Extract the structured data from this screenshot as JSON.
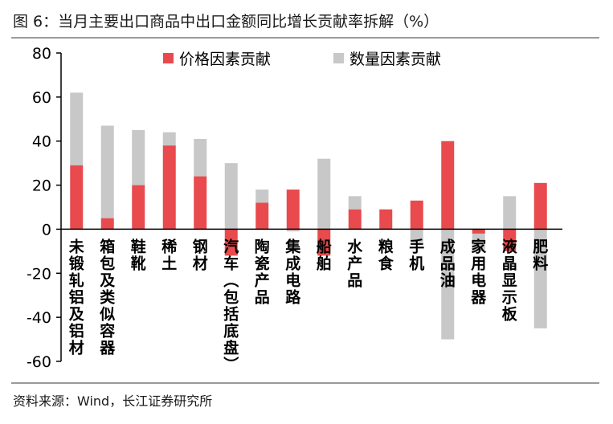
{
  "figure_title": "图 6：当月主要出口商品中出口金额同比增长贡献率拆解（%）",
  "source_note": "资料来源：Wind，长江证券研究所",
  "colors": {
    "price": "#e84a4d",
    "volume": "#c8c8c8"
  },
  "chart_data": {
    "type": "bar",
    "title": "",
    "xlabel": "",
    "ylabel": "",
    "ylim": [
      -60,
      80
    ],
    "yticks": [
      80,
      60,
      40,
      20,
      0,
      -20,
      -40,
      -60
    ],
    "grid": false,
    "legend_placement": "top",
    "categories": [
      "未锻轧铝及铝材",
      "箱包及类似容器",
      "鞋靴",
      "稀土",
      "钢材",
      "汽车（包括底盘）",
      "陶瓷产品",
      "集成电路",
      "船舶",
      "水产品",
      "粮食",
      "手机",
      "成品油",
      "家用电器",
      "液晶显示板",
      "肥料"
    ],
    "series": [
      {
        "name": "价格因素贡献",
        "values": [
          29,
          5,
          20,
          38,
          24,
          -12,
          12,
          18,
          -12,
          9,
          9,
          13,
          40,
          -2,
          -10,
          21
        ]
      },
      {
        "name": "数量因素贡献",
        "values": [
          33,
          42,
          25,
          6,
          17,
          30,
          6,
          -1,
          32,
          6,
          0,
          -6,
          -50,
          -8,
          15,
          -45
        ]
      }
    ]
  }
}
